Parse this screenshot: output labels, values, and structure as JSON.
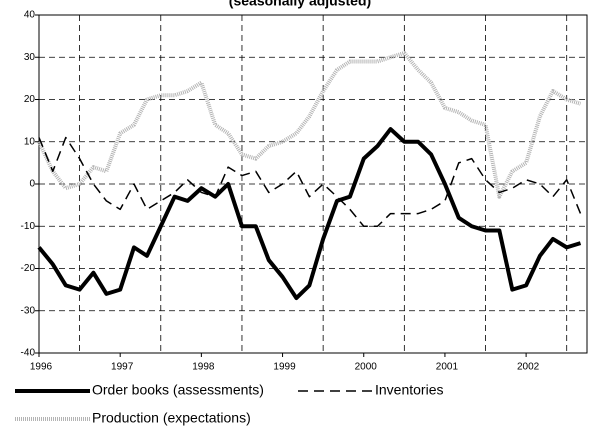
{
  "chart_data": {
    "type": "line",
    "title": "(seasonally adjusted)",
    "x": [
      1996,
      1996.17,
      1996.33,
      1996.5,
      1996.67,
      1996.83,
      1997,
      1997.17,
      1997.33,
      1997.5,
      1997.67,
      1997.83,
      1998,
      1998.17,
      1998.33,
      1998.5,
      1998.67,
      1998.83,
      1999,
      1999.17,
      1999.33,
      1999.5,
      1999.67,
      1999.83,
      2000,
      2000.17,
      2000.33,
      2000.5,
      2000.67,
      2000.83,
      2001,
      2001.17,
      2001.33,
      2001.5,
      2001.67,
      2001.83,
      2002,
      2002.17,
      2002.33,
      2002.5,
      2002.67
    ],
    "series": [
      {
        "name": "Order books (assessments)",
        "color": "#000000",
        "values": [
          -15,
          -19,
          -24,
          -25,
          -21,
          -26,
          -25,
          -15,
          -17,
          -10,
          -3,
          -4,
          -1,
          -3,
          0,
          -10,
          -10,
          -18,
          -22,
          -27,
          -24,
          -13,
          -4,
          -3,
          6,
          9,
          13,
          10,
          10,
          7,
          0,
          -8,
          -10,
          -11,
          -11,
          -25,
          -24,
          -17,
          -13,
          -15,
          -14
        ]
      },
      {
        "name": "Inventories",
        "color": "#000000",
        "values": [
          11,
          3,
          11,
          6,
          0,
          -4,
          -6,
          0,
          -6,
          -4,
          -2,
          1,
          -2,
          -3,
          4,
          2,
          3,
          -2,
          0,
          3,
          -3,
          0,
          -3,
          -6,
          -10,
          -10,
          -7,
          -7,
          -7,
          -6,
          -4,
          5,
          6,
          1,
          -2,
          -1,
          1,
          0,
          -3,
          1,
          -7
        ]
      },
      {
        "name": "Production (expectations)",
        "color": "#b4b4b4",
        "values": [
          10,
          3,
          -1,
          0,
          4,
          3,
          12,
          14,
          20,
          21,
          21,
          22,
          24,
          14,
          12,
          7,
          6,
          9,
          10,
          12,
          16,
          22,
          27,
          29,
          29,
          29,
          30,
          31,
          27,
          24,
          18,
          17,
          15,
          14,
          -3,
          3,
          5,
          16,
          22,
          20,
          19
        ]
      }
    ],
    "xlim": [
      1996,
      2002.75
    ],
    "xticks": [
      1996,
      1997,
      1998,
      1999,
      2000,
      2001,
      2002
    ],
    "xgrid": [
      1996.5,
      1997.5,
      1998.5,
      1999.5,
      2000.5,
      2001.5,
      2002.5
    ],
    "ylim": [
      -40,
      40
    ],
    "yticks": [
      -40,
      -30,
      -20,
      -10,
      0,
      10,
      20,
      30,
      40
    ],
    "grid": true
  }
}
